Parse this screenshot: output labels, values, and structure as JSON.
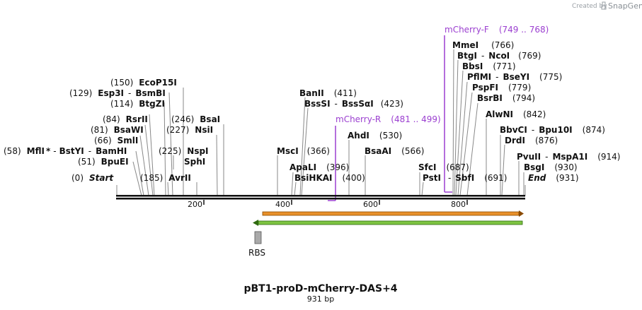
{
  "credit": {
    "prefix": "Created by",
    "brand": "SnapGene"
  },
  "map": {
    "title": "pBT1-proD-mCherry-DAS+4",
    "length": "931 bp"
  },
  "ticks": [
    "200",
    "400",
    "600",
    "800"
  ],
  "features": {
    "rbs_label": "RBS"
  },
  "colors": {
    "primer": "#9b3fd0",
    "orange": "#e8902a",
    "green": "#7ec442",
    "backbone": "#111111"
  },
  "sites": [
    {
      "id": "ecop15i",
      "pos": "(150)",
      "name": "EcoP15I"
    },
    {
      "id": "esp3i-bsmbi",
      "pos": "(129)",
      "name": "Esp3I",
      "sep": "-",
      "name2": "BsmBI"
    },
    {
      "id": "btgzi",
      "pos": "(114)",
      "name": "BtgZI"
    },
    {
      "id": "rsrii",
      "pos": "(84)",
      "name": "RsrII"
    },
    {
      "id": "bsawi",
      "pos": "(81)",
      "name": "BsaWI"
    },
    {
      "id": "smli",
      "pos": "(66)",
      "name": "SmlI"
    },
    {
      "id": "mfli",
      "pos": "(58)",
      "name": "MflI",
      "star": "*",
      "sep": "-",
      "name2": "BstYI",
      "sep2": "-",
      "name3": "BamHI"
    },
    {
      "id": "bpuei",
      "pos": "(51)",
      "name": "BpuEI"
    },
    {
      "id": "start",
      "pos": "(0)",
      "name": "Start"
    },
    {
      "id": "bsai",
      "pos": "(246)",
      "name": "BsaI"
    },
    {
      "id": "nsii",
      "pos": "(227)",
      "name": "NsiI"
    },
    {
      "id": "nspi",
      "pos": "(225)",
      "name": "NspI"
    },
    {
      "id": "sphi",
      "name": "SphI"
    },
    {
      "id": "avrii",
      "pos": "(185)",
      "name": "AvrII"
    },
    {
      "id": "banii",
      "name": "BanII",
      "pos": "(411)"
    },
    {
      "id": "bsssi",
      "name": "BssSI",
      "sep": "-",
      "name2": "BssSαI",
      "pos": "(423)"
    },
    {
      "id": "msci",
      "name": "MscI",
      "pos": "(366)"
    },
    {
      "id": "apali",
      "name": "ApaLI",
      "pos": "(396)"
    },
    {
      "id": "bsihkai",
      "name": "BsiHKAI",
      "pos": "(400)"
    },
    {
      "id": "ahdi",
      "name": "AhdI",
      "pos": "(530)"
    },
    {
      "id": "bsaai",
      "name": "BsaAI",
      "pos": "(566)"
    },
    {
      "id": "sfci",
      "name": "SfcI",
      "pos": "(687)"
    },
    {
      "id": "psti",
      "name": "PstI",
      "sep": "-",
      "name2": "SbfI",
      "pos": "(691)"
    },
    {
      "id": "mmei",
      "name": "MmeI",
      "pos": "(766)"
    },
    {
      "id": "btgi",
      "name": "BtgI",
      "sep": "-",
      "name2": "NcoI",
      "pos": "(769)"
    },
    {
      "id": "bbsi",
      "name": "BbsI",
      "pos": "(771)"
    },
    {
      "id": "pflmi",
      "name": "PflMI",
      "sep": "-",
      "name2": "BseYI",
      "pos": "(775)"
    },
    {
      "id": "pspfi",
      "name": "PspFI",
      "pos": "(779)"
    },
    {
      "id": "bsrbi",
      "name": "BsrBI",
      "pos": "(794)"
    },
    {
      "id": "alwni",
      "name": "AlwNI",
      "pos": "(842)"
    },
    {
      "id": "bbvci",
      "name": "BbvCI",
      "sep": "-",
      "name2": "Bpu10I",
      "pos": "(874)"
    },
    {
      "id": "drdi",
      "name": "DrdI",
      "pos": "(876)"
    },
    {
      "id": "pvuii",
      "name": "PvuII",
      "sep": "-",
      "name2": "MspA1I",
      "pos": "(914)"
    },
    {
      "id": "bsgi",
      "name": "BsgI",
      "pos": "(930)"
    },
    {
      "id": "end",
      "name": "End",
      "pos": "(931)"
    }
  ],
  "primers": [
    {
      "id": "mcherry-r",
      "name": "mCherry-R",
      "range": "(481 .. 499)"
    },
    {
      "id": "mcherry-f",
      "name": "mCherry-F",
      "range": "(749 .. 768)"
    }
  ]
}
